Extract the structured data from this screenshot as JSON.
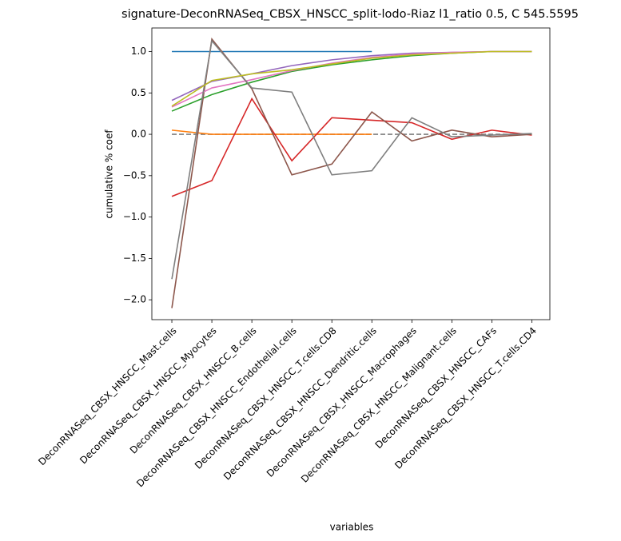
{
  "chart_data": {
    "type": "line",
    "title": "signature-DeconRNASeq_CBSX_HNSCC_split-lodo-Riaz l1_ratio 0.5, C 545.5595",
    "xlabel": "variables",
    "ylabel": "cumulative % coef",
    "categories": [
      "DeconRNASeq_CBSX_HNSCC_Mast.cells",
      "DeconRNASeq_CBSX_HNSCC_Myocytes",
      "DeconRNASeq_CBSX_HNSCC_B.cells",
      "DeconRNASeq_CBSX_HNSCC_Endothelial.cells",
      "DeconRNASeq_CBSX_HNSCC_T.cells.CD8",
      "DeconRNASeq_CBSX_HNSCC_Dendritic.cells",
      "DeconRNASeq_CBSX_HNSCC_Macrophages",
      "DeconRNASeq_CBSX_HNSCC_Malignant.cells",
      "DeconRNASeq_CBSX_HNSCC_CAFs",
      "DeconRNASeq_CBSX_HNSCC_T.cells.CD4"
    ],
    "xlim": [
      -0.5,
      9.45
    ],
    "ylim": [
      -2.24,
      1.285
    ],
    "yticks": [
      {
        "value": -2.0,
        "label": "−2.0"
      },
      {
        "value": -1.5,
        "label": "−1.5"
      },
      {
        "value": -1.0,
        "label": "−1.0"
      },
      {
        "value": -0.5,
        "label": "−0.5"
      },
      {
        "value": 0.0,
        "label": "0.0"
      },
      {
        "value": 0.5,
        "label": "0.5"
      },
      {
        "value": 1.0,
        "label": "1.0"
      }
    ],
    "series": [
      {
        "color": "#1f77b4",
        "values": [
          1.0,
          1.0,
          1.0,
          1.0,
          1.0,
          1.0,
          null,
          null,
          null,
          null
        ]
      },
      {
        "color": "#7f7f7f",
        "dash": true,
        "values": [
          0,
          0,
          0,
          0,
          0,
          0,
          0,
          0,
          0,
          0
        ]
      },
      {
        "color": "#ff7f0e",
        "values": [
          0.05,
          0.0,
          0.0,
          0.0,
          0.0,
          0.0,
          null,
          null,
          null,
          null
        ]
      },
      {
        "color": "#2ca02c",
        "values": [
          0.28,
          0.48,
          0.63,
          0.76,
          0.84,
          0.9,
          0.95,
          0.98,
          1.0,
          1.0
        ]
      },
      {
        "color": "#d62728",
        "values": [
          -0.75,
          -0.56,
          0.43,
          -0.32,
          0.2,
          0.17,
          0.14,
          -0.06,
          0.05,
          -0.01
        ]
      },
      {
        "color": "#9467bd",
        "values": [
          0.41,
          0.64,
          0.73,
          0.83,
          0.9,
          0.95,
          0.98,
          0.99,
          1.0,
          1.0
        ]
      },
      {
        "color": "#8c564b",
        "values": [
          -2.1,
          1.15,
          0.55,
          -0.49,
          -0.36,
          0.27,
          -0.08,
          0.05,
          -0.03,
          0.0
        ]
      },
      {
        "color": "#e377c2",
        "values": [
          0.33,
          0.56,
          0.66,
          0.77,
          0.86,
          0.93,
          0.97,
          0.99,
          1.0,
          1.0
        ]
      },
      {
        "color": "#7f7f7f",
        "values": [
          -1.75,
          1.13,
          0.56,
          0.51,
          -0.49,
          -0.44,
          0.2,
          -0.03,
          -0.01,
          0.01
        ]
      },
      {
        "color": "#bcbd22",
        "values": [
          0.34,
          0.65,
          0.73,
          0.78,
          0.85,
          0.92,
          0.96,
          0.98,
          1.0,
          1.0
        ]
      }
    ]
  }
}
